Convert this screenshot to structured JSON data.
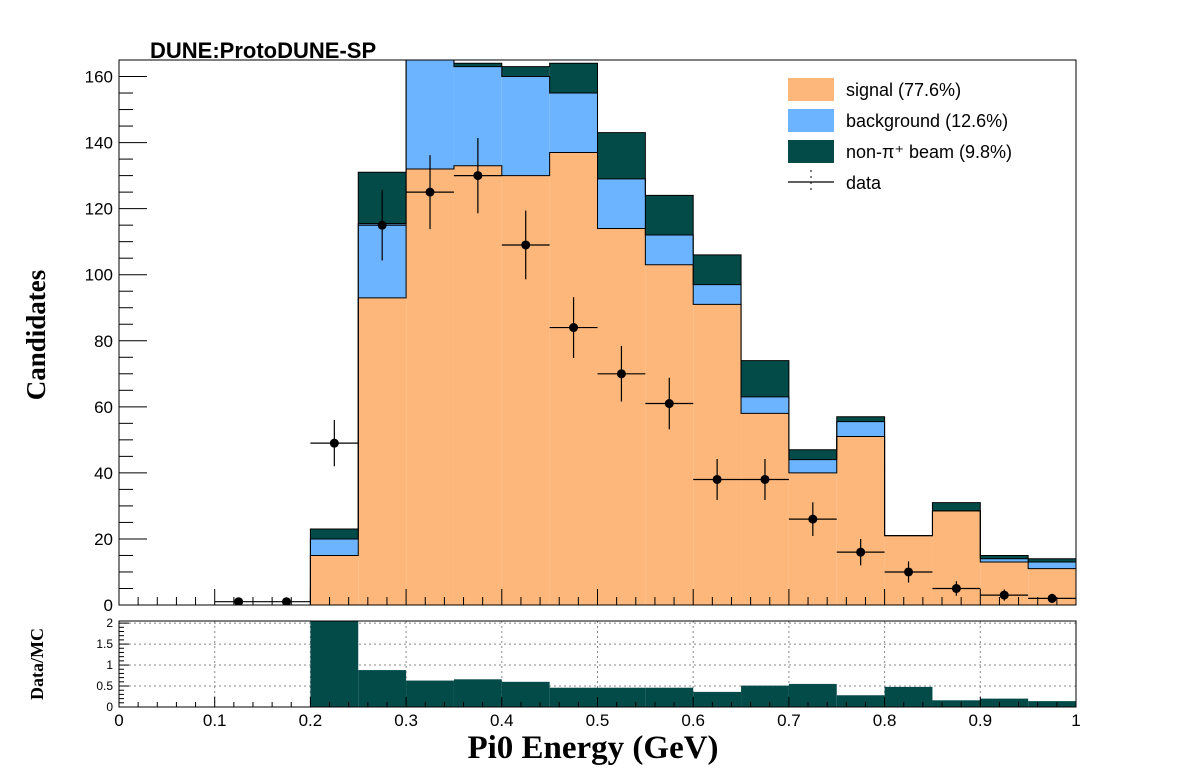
{
  "chart_data": {
    "type": "bar",
    "stacked": true,
    "title": "DUNE:ProtoDUNE-SP",
    "xlabel": "Pi0 Energy (GeV)",
    "ylabel": "Candidates",
    "ratio_ylabel": "Data/MC",
    "xlim": [
      0,
      1
    ],
    "ylim": [
      0,
      165
    ],
    "ratio_ylim": [
      0,
      2.05
    ],
    "x_ticks": [
      "0",
      "0.1",
      "0.2",
      "0.3",
      "0.4",
      "0.5",
      "0.6",
      "0.7",
      "0.8",
      "0.9",
      "1"
    ],
    "y_ticks": [
      "0",
      "20",
      "40",
      "60",
      "80",
      "100",
      "120",
      "140",
      "160"
    ],
    "ratio_y_ticks": [
      "0",
      "0.5",
      "1",
      "1.5",
      "2"
    ],
    "bin_edges": [
      0,
      0.05,
      0.1,
      0.15,
      0.2,
      0.25,
      0.3,
      0.35,
      0.4,
      0.45,
      0.5,
      0.55,
      0.6,
      0.65,
      0.7,
      0.75,
      0.8,
      0.85,
      0.9,
      0.95,
      1.0
    ],
    "series": [
      {
        "name": "signal (77.6%)",
        "color": "#fdb77a",
        "values": [
          0,
          0,
          0,
          0,
          15,
          93,
          132,
          133,
          130,
          137,
          114,
          103,
          91,
          58,
          40,
          51,
          21,
          28.5,
          13,
          11
        ]
      },
      {
        "name": "background (12.6%)",
        "color": "#6cb4ff",
        "values": [
          0,
          0,
          0,
          0,
          5,
          22.5,
          34,
          30,
          30,
          18,
          15,
          9,
          6,
          5,
          4,
          4.5,
          0,
          0,
          1,
          2
        ]
      },
      {
        "name": "non-π⁺ beam (9.8%)",
        "color": "#034b49",
        "values": [
          0,
          0,
          0,
          0,
          3,
          15.5,
          0,
          1,
          3,
          9,
          14,
          12,
          9,
          11,
          3,
          1.5,
          0,
          2.5,
          1,
          1
        ]
      }
    ],
    "data": {
      "name": "data",
      "x": [
        0.125,
        0.175,
        0.225,
        0.275,
        0.325,
        0.375,
        0.425,
        0.475,
        0.525,
        0.575,
        0.625,
        0.675,
        0.725,
        0.775,
        0.825,
        0.875,
        0.925,
        0.975
      ],
      "y": [
        1,
        1,
        49,
        115,
        125,
        130,
        109,
        84,
        70,
        61,
        38,
        38,
        26,
        16,
        10,
        5,
        3,
        2
      ],
      "yerr": [
        1,
        1,
        7,
        10.7,
        11.2,
        11.4,
        10.4,
        9.2,
        8.4,
        7.8,
        6.2,
        6.2,
        5.1,
        4,
        3.2,
        2.2,
        1.7,
        1.4
      ]
    },
    "ratio_values": [
      0,
      0,
      0,
      0,
      2.13,
      0.88,
      0.63,
      0.66,
      0.6,
      0.46,
      0.46,
      0.46,
      0.36,
      0.51,
      0.55,
      0.28,
      0.48,
      0.16,
      0.2,
      0.14
    ],
    "ratio_color": "#034b49",
    "legend_position": "top-right",
    "grid": false,
    "ratio_grid": true
  }
}
